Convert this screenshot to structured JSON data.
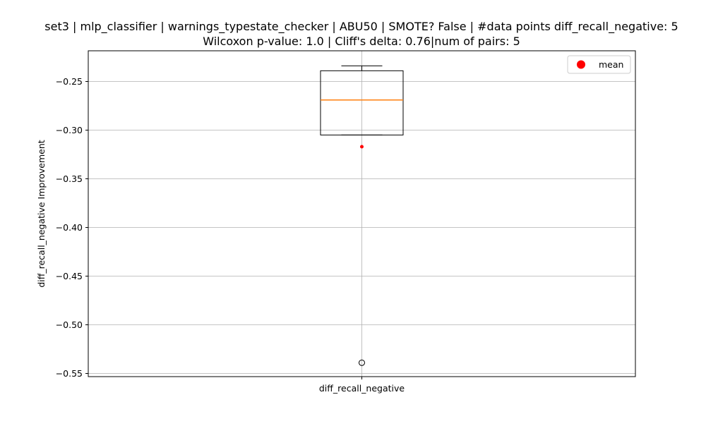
{
  "chart_data": {
    "type": "box",
    "title_lines": [
      "set3 | mlp_classifier | warnings_typestate_checker | ABU50 | SMOTE? False | #data points diff_recall_negative: 5",
      "Wilcoxon p-value: 1.0 | Cliff's delta: 0.76|num of pairs: 5"
    ],
    "xlabel": "",
    "ylabel": "diff_recall_negative Improvement",
    "categories": [
      "diff_recall_negative"
    ],
    "ylim": [
      -0.555,
      -0.22
    ],
    "yticks": [
      -0.25,
      -0.3,
      -0.35,
      -0.4,
      -0.45,
      -0.5,
      -0.55
    ],
    "ytick_labels": [
      "−0.25",
      "−0.30",
      "−0.35",
      "−0.40",
      "−0.45",
      "−0.50",
      "−0.55"
    ],
    "grid": true,
    "box": {
      "whisker_high": -0.234,
      "q3": -0.239,
      "median": -0.269,
      "q1": -0.305,
      "whisker_low": -0.305,
      "mean": -0.317,
      "outliers": [
        -0.539
      ]
    },
    "legend": {
      "placement": "top-right",
      "entries": [
        {
          "label": "mean",
          "marker": "circle",
          "color": "#ff0000"
        }
      ]
    },
    "colors": {
      "box": "#000000",
      "median": "#ff7f0e",
      "mean": "#ff0000",
      "grid": "#b0b0b0"
    }
  }
}
